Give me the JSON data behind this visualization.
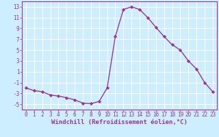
{
  "x": [
    0,
    1,
    2,
    3,
    4,
    5,
    6,
    7,
    8,
    9,
    10,
    11,
    12,
    13,
    14,
    15,
    16,
    17,
    18,
    19,
    20,
    21,
    22,
    23
  ],
  "y": [
    -2,
    -2.5,
    -2.7,
    -3.3,
    -3.5,
    -3.8,
    -4.2,
    -4.8,
    -4.9,
    -4.5,
    -2,
    7.5,
    12.5,
    13.0,
    12.5,
    11.0,
    9.2,
    7.5,
    6.0,
    5.0,
    3.0,
    1.5,
    -1.0,
    -2.7
  ],
  "line_color": "#993399",
  "marker": "D",
  "markersize": 2.2,
  "linewidth": 1.0,
  "xlabel": "Windchill (Refroidissement éolien,°C)",
  "xlabel_fontsize": 6.5,
  "background_color": "#cceeff",
  "grid_color": "#ffffff",
  "ylim": [
    -6,
    14
  ],
  "xlim": [
    -0.5,
    23.5
  ],
  "yticks": [
    -5,
    -3,
    -1,
    1,
    3,
    5,
    7,
    9,
    11,
    13
  ],
  "xtick_labels": [
    "0",
    "1",
    "2",
    "3",
    "4",
    "5",
    "6",
    "7",
    "8",
    "9",
    "10",
    "11",
    "12",
    "13",
    "14",
    "15",
    "16",
    "17",
    "18",
    "19",
    "20",
    "21",
    "22",
    "23"
  ],
  "tick_label_fontsize": 5.5,
  "tick_color": "#993399",
  "spine_color": "#993399"
}
